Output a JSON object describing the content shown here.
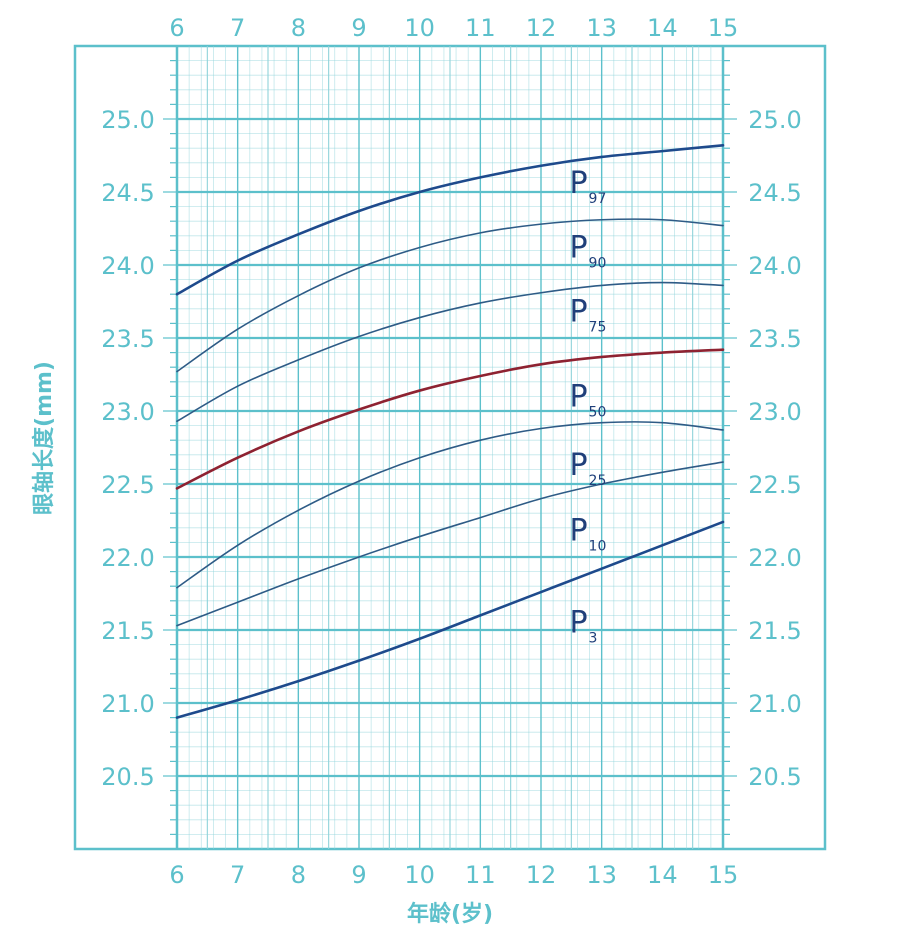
{
  "chart_data": {
    "type": "line",
    "xlabel": "年龄(岁)",
    "ylabel": "眼轴长度(mm)",
    "xlim": [
      6,
      15
    ],
    "ylim": [
      20.0,
      25.5
    ],
    "x_ticks": [
      "6",
      "7",
      "8",
      "9",
      "10",
      "11",
      "12",
      "13",
      "14",
      "15"
    ],
    "y_ticks": [
      "20.5",
      "21.0",
      "21.5",
      "22.0",
      "22.5",
      "23.0",
      "23.5",
      "24.0",
      "24.5",
      "25.0"
    ],
    "grid": true,
    "x": [
      6,
      7,
      8,
      9,
      10,
      11,
      12,
      13,
      14,
      15
    ],
    "series": [
      {
        "name": "P97",
        "label": "P",
        "sub": "97",
        "label_at": [
          12.8,
          24.56
        ],
        "color": "#1e4a8c",
        "width": 2.6,
        "values": [
          23.8,
          24.03,
          24.21,
          24.37,
          24.5,
          24.6,
          24.68,
          24.74,
          24.78,
          24.82
        ]
      },
      {
        "name": "P90",
        "label": "P",
        "sub": "90",
        "label_at": [
          12.8,
          24.12
        ],
        "color": "#2e5b86",
        "width": 1.6,
        "values": [
          23.27,
          23.56,
          23.79,
          23.98,
          24.12,
          24.22,
          24.28,
          24.31,
          24.31,
          24.27
        ]
      },
      {
        "name": "P75",
        "label": "P",
        "sub": "75",
        "label_at": [
          12.8,
          23.68
        ],
        "color": "#2e5b86",
        "width": 1.6,
        "values": [
          22.93,
          23.17,
          23.35,
          23.51,
          23.64,
          23.74,
          23.81,
          23.86,
          23.88,
          23.86
        ]
      },
      {
        "name": "P50",
        "label": "P",
        "sub": "50",
        "label_at": [
          12.8,
          23.1
        ],
        "color": "#8e2231",
        "width": 2.6,
        "values": [
          22.47,
          22.68,
          22.86,
          23.01,
          23.14,
          23.24,
          23.32,
          23.37,
          23.4,
          23.42
        ]
      },
      {
        "name": "P25",
        "label": "P",
        "sub": "25",
        "label_at": [
          12.8,
          22.63
        ],
        "color": "#2e5b86",
        "width": 1.6,
        "values": [
          21.79,
          22.08,
          22.32,
          22.52,
          22.68,
          22.8,
          22.88,
          22.92,
          22.92,
          22.87
        ]
      },
      {
        "name": "P10",
        "label": "P",
        "sub": "10",
        "label_at": [
          12.8,
          22.18
        ],
        "color": "#2e5b86",
        "width": 1.6,
        "values": [
          21.53,
          21.69,
          21.85,
          22.0,
          22.14,
          22.27,
          22.4,
          22.5,
          22.58,
          22.65
        ]
      },
      {
        "name": "P3",
        "label": "P",
        "sub": "3",
        "label_at": [
          12.8,
          21.55
        ],
        "color": "#1e4a8c",
        "width": 2.6,
        "values": [
          20.9,
          21.02,
          21.15,
          21.29,
          21.44,
          21.6,
          21.76,
          21.92,
          22.08,
          22.24
        ]
      }
    ]
  }
}
